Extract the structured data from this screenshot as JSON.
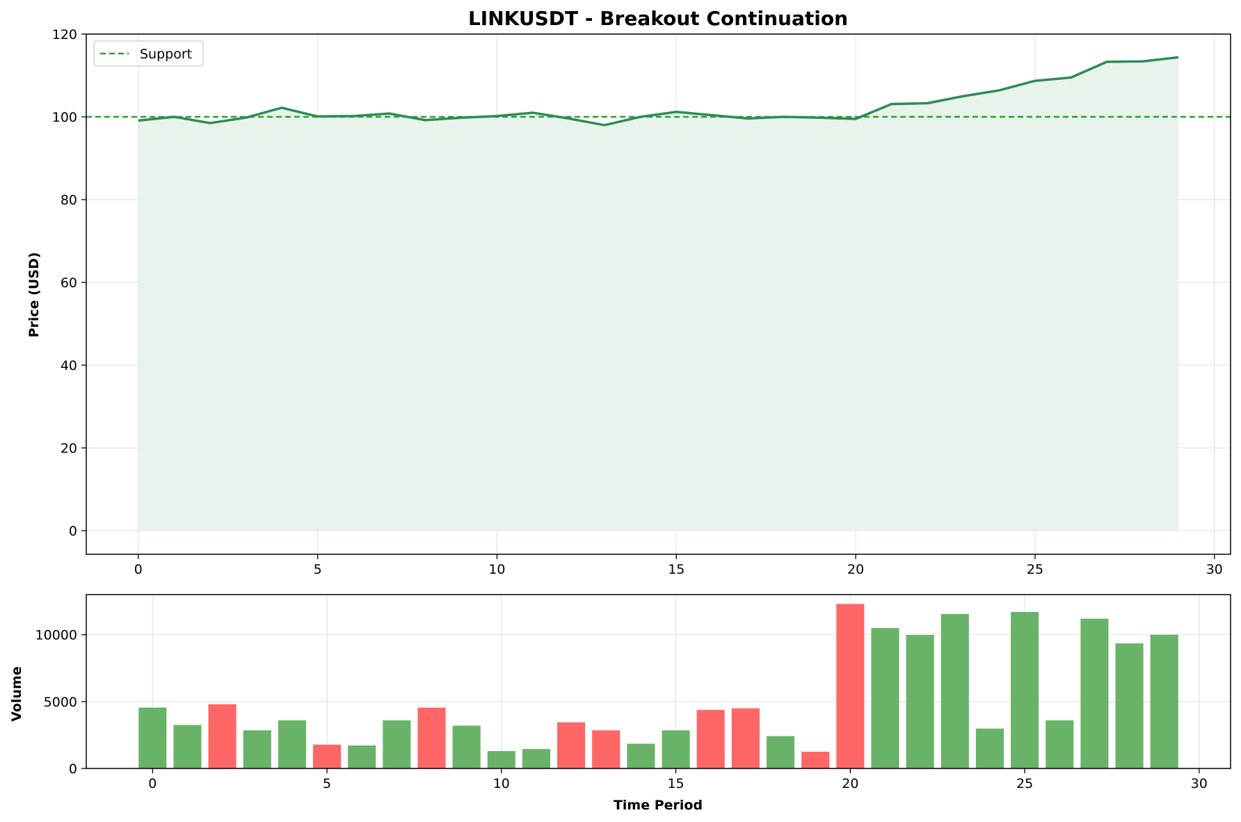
{
  "chart_data": [
    {
      "type": "line",
      "title": "LINKUSDT - Breakout Continuation",
      "xlabel": "",
      "ylabel": "Price (USD)",
      "xlim": [
        -1.45,
        30.45
      ],
      "ylim": [
        -5.7,
        120
      ],
      "xticks": [
        0,
        5,
        10,
        15,
        20,
        25,
        30
      ],
      "yticks": [
        0,
        20,
        40,
        60,
        80,
        100,
        120
      ],
      "grid": true,
      "fill_under": true,
      "line_color": "#2e8b57",
      "fill_color": "#e8f3ec",
      "x": [
        0,
        1,
        2,
        3,
        4,
        5,
        6,
        7,
        8,
        9,
        10,
        11,
        12,
        13,
        14,
        15,
        16,
        17,
        18,
        19,
        20,
        21,
        22,
        23,
        24,
        25,
        26,
        27,
        28,
        29
      ],
      "values": [
        99.1,
        100.0,
        98.5,
        99.8,
        102.2,
        100.1,
        100.2,
        100.8,
        99.2,
        99.8,
        100.2,
        101.0,
        99.6,
        98.0,
        100.0,
        101.2,
        100.4,
        99.6,
        100.0,
        99.8,
        99.5,
        103.1,
        103.3,
        105.0,
        106.4,
        108.7,
        109.5,
        113.3,
        113.4,
        114.4
      ],
      "support": {
        "name": "Support",
        "value": 100,
        "color": "#2ca02c"
      },
      "legend": {
        "position": "upper-left",
        "entries": [
          "Support"
        ]
      }
    },
    {
      "type": "bar",
      "xlabel": "Time Period",
      "ylabel": "Volume",
      "xlim": [
        -1.9,
        30.9
      ],
      "ylim": [
        0,
        13000
      ],
      "xticks": [
        0,
        5,
        10,
        15,
        20,
        25,
        30
      ],
      "yticks": [
        0,
        5000,
        10000
      ],
      "grid": true,
      "up_color": "#69b369",
      "down_color": "#ff6666",
      "x": [
        0,
        1,
        2,
        3,
        4,
        5,
        6,
        7,
        8,
        9,
        10,
        11,
        12,
        13,
        14,
        15,
        16,
        17,
        18,
        19,
        20,
        21,
        22,
        23,
        24,
        25,
        26,
        27,
        28,
        29
      ],
      "values": [
        4550,
        3250,
        4800,
        2850,
        3600,
        1780,
        1720,
        3600,
        4550,
        3200,
        1300,
        1450,
        3450,
        2850,
        1850,
        2850,
        4380,
        4500,
        2420,
        1250,
        12300,
        10500,
        9980,
        11550,
        2980,
        11700,
        3600,
        11200,
        9350,
        10000
      ],
      "direction": [
        "up",
        "up",
        "down",
        "up",
        "up",
        "down",
        "up",
        "up",
        "down",
        "up",
        "up",
        "up",
        "down",
        "down",
        "up",
        "up",
        "down",
        "down",
        "up",
        "down",
        "down",
        "up",
        "up",
        "up",
        "up",
        "up",
        "up",
        "up",
        "up",
        "up"
      ]
    }
  ]
}
